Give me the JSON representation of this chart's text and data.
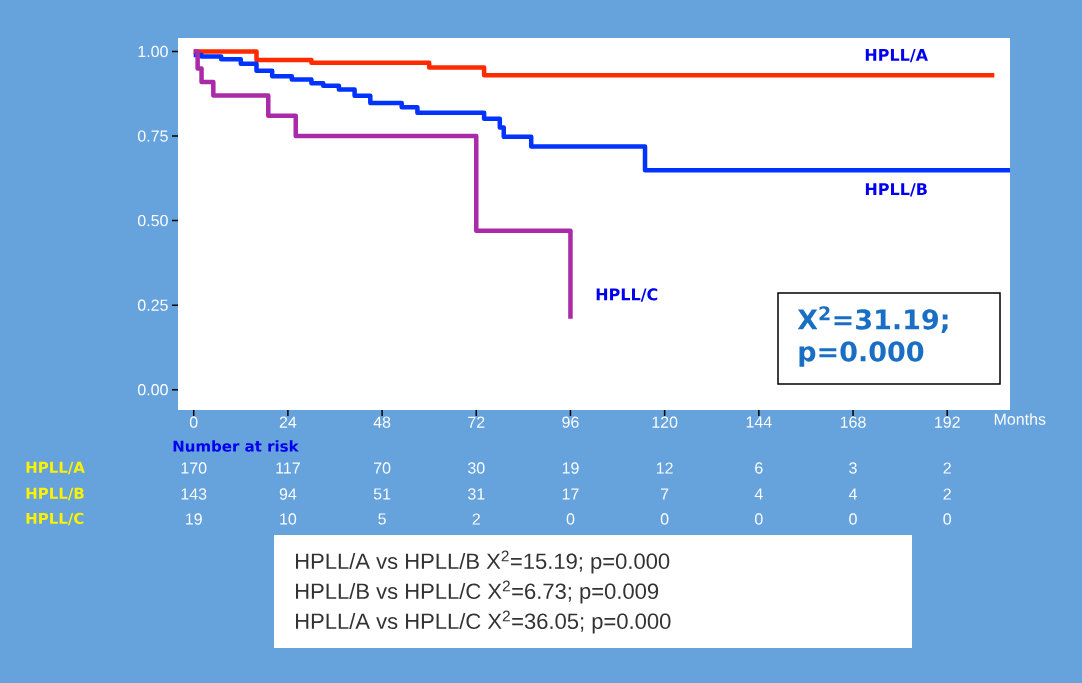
{
  "chart_data": {
    "type": "step",
    "xlabel": "Months",
    "xlim": [
      -4,
      208
    ],
    "ylim": [
      -0.06,
      1.04
    ],
    "xticks": [
      0,
      24,
      48,
      72,
      96,
      120,
      144,
      168,
      192
    ],
    "yticks": [
      {
        "value": 0,
        "label": "0.00"
      },
      {
        "value": 0.25,
        "label": "0.25"
      },
      {
        "value": 0.5,
        "label": "0.50"
      },
      {
        "value": 0.75,
        "label": "0.75"
      },
      {
        "value": 1,
        "label": "1.00"
      }
    ],
    "line_style": "solid",
    "series": [
      {
        "name": "HPLL/A",
        "color": "#ff2a00",
        "x": [
          0,
          16,
          30,
          60,
          74,
          204
        ],
        "values": [
          1.0,
          0.975,
          0.967,
          0.953,
          0.93,
          0.93
        ]
      },
      {
        "name": "HPLL/B",
        "color": "#0033ff",
        "x": [
          0,
          2,
          7,
          12,
          16,
          20,
          25,
          30,
          33,
          37,
          41,
          45,
          53,
          57,
          74,
          78,
          79,
          86,
          115,
          208
        ],
        "values": [
          0.99,
          0.985,
          0.977,
          0.964,
          0.943,
          0.927,
          0.917,
          0.906,
          0.899,
          0.888,
          0.869,
          0.848,
          0.835,
          0.819,
          0.801,
          0.775,
          0.748,
          0.719,
          0.649,
          0.649
        ]
      },
      {
        "name": "HPLL/C",
        "color": "#aa2aa8",
        "x": [
          0,
          1,
          2,
          5,
          19,
          26,
          72,
          96
        ],
        "values": [
          1.0,
          0.95,
          0.91,
          0.87,
          0.81,
          0.75,
          0.47,
          0.21
        ]
      }
    ],
    "annotations": [
      "Number at risk",
      "HPLL/A",
      "170",
      "117",
      "70",
      "30",
      "19",
      "12",
      "6",
      "3",
      "2",
      "HPLL/B",
      "143",
      "94",
      "51",
      "31",
      "17",
      "7",
      "4",
      "4",
      "2",
      "HPLL/C",
      "19",
      "10",
      "5",
      "2",
      "0",
      "0",
      "0",
      "0",
      "0",
      "X$^{2}$=31.19; p=0.000",
      "HPLL/A vs HPLL/B X$^{2}$=15.19; p=0.000",
      "HPLL/B vs HPLL/C X$^{2}$=6.73; p=0.009",
      "HPLL/A vs HPLL/C X$^{2}$=36.05; p=0.000"
    ]
  }
}
